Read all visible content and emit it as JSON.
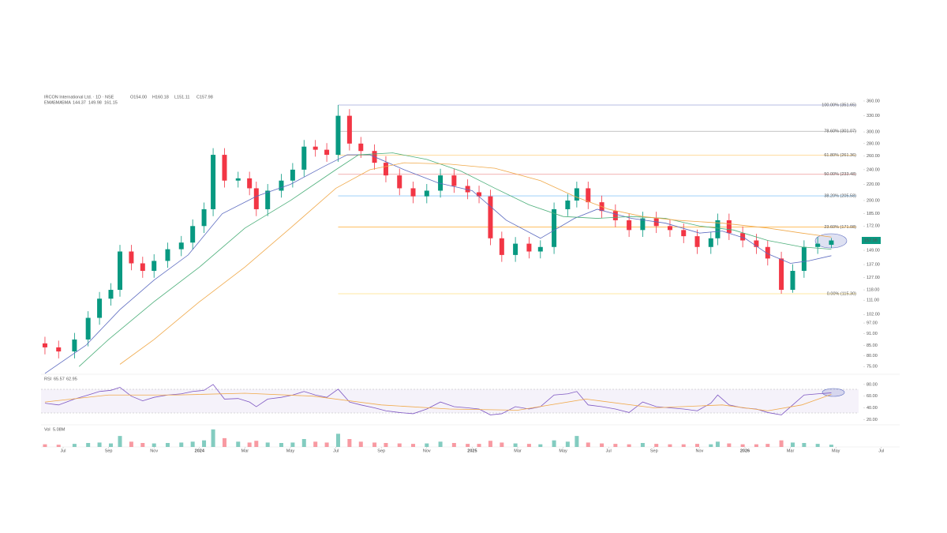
{
  "chart_data": [
    {
      "type": "candlestick",
      "title": "IRCON International Ltd. · 1D · NSE",
      "ohlc_labels": [
        "O154.00",
        "H160.18",
        "L151.11",
        "C157.98"
      ],
      "log_scale": true,
      "ylim": [
        73,
        365
      ],
      "yticks": [
        {
          "value": 360,
          "label": "360.00"
        },
        {
          "value": 330,
          "label": "330.00"
        },
        {
          "value": 300,
          "label": "300.00"
        },
        {
          "value": 280,
          "label": "280.00"
        },
        {
          "value": 260,
          "label": "260.00"
        },
        {
          "value": 240,
          "label": "240.00"
        },
        {
          "value": 220,
          "label": "220.00"
        },
        {
          "value": 200,
          "label": "200.00"
        },
        {
          "value": 185,
          "label": "185.00"
        },
        {
          "value": 172,
          "label": "172.00"
        },
        {
          "value": 149,
          "label": "149.00"
        },
        {
          "value": 137,
          "label": "137.00"
        },
        {
          "value": 127,
          "label": "127.00"
        },
        {
          "value": 118,
          "label": "118.00"
        },
        {
          "value": 111,
          "label": "111.00"
        },
        {
          "value": 102,
          "label": "102.00"
        },
        {
          "value": 97,
          "label": "97.00"
        },
        {
          "value": 91,
          "label": "91.00"
        },
        {
          "value": 85,
          "label": "85.00"
        },
        {
          "value": 80,
          "label": "80.00"
        },
        {
          "value": 75,
          "label": "75.00"
        }
      ],
      "xlim": [
        5,
        42
      ],
      "xticks": [
        {
          "value": 6,
          "label": "Jul"
        },
        {
          "value": 8,
          "label": "Sep"
        },
        {
          "value": 10,
          "label": "Nov"
        },
        {
          "value": 12,
          "label": "2024"
        },
        {
          "value": 14,
          "label": "Mar"
        },
        {
          "value": 16,
          "label": "May"
        },
        {
          "value": 18,
          "label": "Jul"
        },
        {
          "value": 20,
          "label": "Sep"
        },
        {
          "value": 22,
          "label": "Nov"
        },
        {
          "value": 24,
          "label": "2025"
        },
        {
          "value": 26,
          "label": "Mar"
        },
        {
          "value": 28,
          "label": "May"
        },
        {
          "value": 30,
          "label": "Jul"
        },
        {
          "value": 32,
          "label": "Sep"
        },
        {
          "value": 34,
          "label": "Nov"
        },
        {
          "value": 36,
          "label": "2026"
        },
        {
          "value": 38,
          "label": "Mar"
        },
        {
          "value": 40,
          "label": "May"
        },
        {
          "value": 42,
          "label": "Jul"
        }
      ],
      "up_color": "#089981",
      "down_color": "#f23645",
      "x": [
        5.2,
        5.8,
        6.5,
        7.1,
        7.6,
        8.1,
        8.5,
        9.0,
        9.5,
        10.0,
        10.6,
        11.2,
        11.7,
        12.2,
        12.6,
        13.1,
        13.7,
        14.2,
        14.5,
        15.0,
        15.6,
        16.1,
        16.6,
        17.1,
        17.6,
        18.1,
        18.6,
        19.1,
        19.7,
        20.2,
        20.8,
        21.4,
        22.0,
        22.6,
        23.2,
        23.8,
        24.3,
        24.8,
        25.3,
        25.9,
        26.5,
        27.0,
        27.6,
        28.2,
        28.6,
        29.1,
        29.7,
        30.3,
        30.9,
        31.5,
        32.1,
        32.7,
        33.3,
        33.9,
        34.5,
        34.8,
        35.3,
        35.9,
        36.5,
        37.0,
        37.6,
        38.1,
        38.6,
        39.2,
        39.8
      ],
      "open": [
        86,
        84,
        82,
        88,
        100,
        112,
        118,
        148,
        138,
        132,
        140,
        150,
        156,
        172,
        190,
        262,
        225,
        228,
        215,
        190,
        212,
        225,
        240,
        275,
        270,
        262,
        330,
        280,
        268,
        250,
        232,
        215,
        205,
        212,
        232,
        218,
        210,
        205,
        160,
        145,
        155,
        148,
        152,
        190,
        200,
        215,
        198,
        188,
        178,
        168,
        180,
        172,
        168,
        162,
        152,
        160,
        178,
        165,
        158,
        152,
        142,
        118,
        132,
        152,
        154
      ],
      "high": [
        89.4,
        87.4,
        91.5,
        104,
        116.5,
        122.7,
        153.9,
        153.9,
        143.5,
        145.6,
        156,
        162.2,
        178.9,
        197.6,
        272.5,
        272.5,
        237.1,
        237.1,
        223.6,
        220.5,
        234,
        249.6,
        286,
        286,
        280.8,
        351.65,
        343.2,
        291.2,
        278.7,
        260,
        241.3,
        223.6,
        220.5,
        241.3,
        241.3,
        226.7,
        218.4,
        213.2,
        166.4,
        161.2,
        161.2,
        158.1,
        197.6,
        208,
        223.6,
        223.6,
        205.9,
        195.5,
        185.1,
        187.2,
        187.2,
        178.9,
        174.7,
        168.5,
        166.4,
        185.1,
        185.1,
        171.6,
        164.3,
        158.1,
        147.7,
        137.3,
        158.1,
        161.2,
        160.18
      ],
      "low": [
        80.6,
        78.7,
        78.7,
        84.5,
        96,
        107.5,
        113.3,
        132.5,
        126.7,
        126.7,
        134.4,
        144,
        149.8,
        165.1,
        182.4,
        216,
        216,
        206.4,
        182.4,
        182.4,
        203.5,
        216,
        230.4,
        259.2,
        251.5,
        251.5,
        268.8,
        257.3,
        240,
        222.7,
        206.4,
        196.8,
        196.8,
        203.5,
        209.3,
        201.6,
        196.8,
        153.6,
        139.2,
        139.2,
        142.1,
        142.1,
        145.9,
        182.4,
        192,
        190.1,
        180.5,
        170.9,
        161.3,
        161.3,
        165.1,
        161.3,
        155.5,
        145.9,
        145.9,
        153.6,
        158.4,
        151.7,
        145.9,
        136.3,
        115.3,
        116,
        126.7,
        145.9,
        151.11
      ],
      "close": [
        84,
        82,
        88,
        100,
        112,
        118,
        148,
        138,
        132,
        140,
        150,
        156,
        172,
        190,
        262,
        225,
        228,
        215,
        190,
        212,
        225,
        240,
        275,
        270,
        262,
        330,
        280,
        268,
        250,
        232,
        215,
        205,
        212,
        232,
        218,
        210,
        205,
        160,
        145,
        155,
        148,
        152,
        190,
        200,
        215,
        198,
        188,
        178,
        168,
        180,
        172,
        168,
        162,
        152,
        160,
        178,
        165,
        158,
        152,
        142,
        118,
        132,
        152,
        155,
        157.98
      ],
      "overlays": [
        {
          "name": "EMA",
          "color": "#5c6bc0",
          "x": [
            5.2,
            7,
            8.5,
            10,
            11.5,
            13,
            14.5,
            16,
            17.5,
            18.5,
            19.5,
            21,
            22.5,
            24,
            25.5,
            27,
            28.5,
            29.5,
            31,
            32.5,
            34,
            35,
            36,
            37,
            38,
            38.8,
            39.8
          ],
          "values": [
            72,
            85,
            105,
            125,
            145,
            185,
            205,
            220,
            245,
            262,
            262,
            240,
            222,
            212,
            178,
            160,
            180,
            190,
            180,
            175,
            165,
            167,
            160,
            146,
            138,
            140,
            144.37
          ]
        },
        {
          "name": "SMA",
          "color": "#4caf7a",
          "x": [
            6.7,
            8,
            10,
            12,
            14,
            16,
            18,
            19,
            20.5,
            22,
            23.5,
            25,
            26.5,
            28,
            29.5,
            31,
            32.5,
            34,
            35.5,
            37,
            38.5,
            39.8
          ],
          "values": [
            75,
            88,
            110,
            135,
            170,
            200,
            240,
            262,
            265,
            255,
            238,
            215,
            195,
            182,
            180,
            182,
            180,
            172,
            168,
            158,
            152,
            149.98
          ]
        },
        {
          "name": "SMA",
          "color": "#f0a94a",
          "x": [
            8.5,
            10,
            12,
            14,
            16,
            18,
            19.5,
            21,
            23,
            25,
            27,
            28.5,
            30,
            31.5,
            33,
            35,
            37,
            38.5,
            39.8
          ],
          "values": [
            76,
            88,
            110,
            135,
            170,
            215,
            240,
            250,
            248,
            242,
            225,
            205,
            190,
            182,
            178,
            175,
            170,
            165,
            161.15
          ]
        }
      ],
      "fib_levels": [
        {
          "value": 351.65,
          "label": "100.00% (351.65)",
          "color": "#9fa8da"
        },
        {
          "value": 301.07,
          "label": "78.60% (301.07)",
          "color": "#b0b0b0"
        },
        {
          "value": 261.36,
          "label": "61.80% (261.36)",
          "color": "#ffd180"
        },
        {
          "value": 233.48,
          "label": "50.00% (233.48)",
          "color": "#ef9a9a"
        },
        {
          "value": 205.58,
          "label": "38.20% (205.58)",
          "color": "#90caf9"
        },
        {
          "value": 171.08,
          "label": "23.60% (171.08)",
          "color": "#ffb74d"
        },
        {
          "value": 115.3,
          "label": "0.00% (115.30)",
          "color": "#ffe082"
        }
      ]
    },
    {
      "type": "line",
      "title": "RSI",
      "ylim": [
        11,
        92
      ],
      "yticks": [
        {
          "value": 80,
          "label": "80.00"
        },
        {
          "value": 60,
          "label": "60.00"
        },
        {
          "value": 40,
          "label": "40.00"
        },
        {
          "value": 20,
          "label": "20.00"
        }
      ],
      "series": [
        {
          "color": "#7e57c2",
          "x": [
            5.2,
            5.8,
            6.5,
            7.1,
            7.6,
            8.1,
            8.5,
            9.0,
            9.5,
            10.0,
            10.6,
            11.2,
            11.7,
            12.2,
            12.6,
            13.1,
            13.7,
            14.2,
            14.5,
            15.0,
            15.6,
            16.1,
            16.6,
            17.1,
            17.6,
            18.1,
            18.6,
            19.1,
            19.7,
            20.2,
            20.8,
            21.4,
            22.0,
            22.6,
            23.2,
            23.8,
            24.3,
            24.8,
            25.3,
            25.9,
            26.5,
            27.0,
            27.6,
            28.2,
            28.6,
            29.1,
            29.7,
            30.3,
            30.9,
            31.5,
            32.1,
            32.7,
            33.3,
            33.9,
            34.5,
            34.8,
            35.3,
            35.9,
            36.5,
            37.0,
            37.6,
            38.1,
            38.6,
            39.2,
            39.8
          ],
          "values": [
            48,
            45,
            55,
            62,
            68,
            70,
            75,
            60,
            52,
            58,
            62,
            64,
            68,
            70,
            80,
            55,
            56,
            50,
            42,
            55,
            58,
            62,
            68,
            62,
            58,
            72,
            50,
            45,
            40,
            35,
            32,
            30,
            38,
            50,
            42,
            40,
            38,
            28,
            30,
            42,
            38,
            42,
            62,
            64,
            68,
            45,
            42,
            38,
            32,
            50,
            42,
            40,
            38,
            35,
            48,
            62,
            45,
            40,
            38,
            32,
            28,
            45,
            62,
            64,
            65.57
          ]
        },
        {
          "color": "#f0a94a",
          "x": [
            5.2,
            8,
            11,
            14,
            17,
            20,
            23,
            26,
            29,
            32,
            35,
            37,
            38.5,
            39.8
          ],
          "values": [
            50,
            62,
            62,
            65,
            60,
            45,
            38,
            36,
            55,
            40,
            45,
            35,
            45,
            62.95
          ]
        }
      ]
    },
    {
      "type": "bar",
      "title": "Vol",
      "value_label": "5.08M",
      "ylim": [
        0,
        45
      ],
      "x": [
        5.2,
        5.8,
        6.5,
        7.1,
        7.6,
        8.1,
        8.5,
        9.0,
        9.5,
        10.0,
        10.6,
        11.2,
        11.7,
        12.2,
        12.6,
        13.1,
        13.7,
        14.2,
        14.5,
        15.0,
        15.6,
        16.1,
        16.6,
        17.1,
        17.6,
        18.1,
        18.6,
        19.1,
        19.7,
        20.2,
        20.8,
        21.4,
        22.0,
        22.6,
        23.2,
        23.8,
        24.3,
        24.8,
        25.3,
        25.9,
        26.5,
        27.0,
        27.6,
        28.2,
        28.6,
        29.1,
        29.7,
        30.3,
        30.9,
        31.5,
        32.1,
        32.7,
        33.3,
        33.9,
        34.5,
        34.8,
        35.3,
        35.9,
        36.5,
        37.0,
        37.6,
        38.1,
        38.6,
        39.2,
        39.8
      ],
      "values": [
        6,
        5,
        7,
        9,
        10,
        8,
        25,
        12,
        9,
        8,
        9,
        10,
        12,
        15,
        40,
        20,
        12,
        10,
        14,
        10,
        9,
        10,
        18,
        12,
        10,
        30,
        18,
        12,
        10,
        9,
        8,
        7,
        8,
        12,
        9,
        7,
        7,
        14,
        10,
        8,
        7,
        6,
        15,
        12,
        25,
        10,
        8,
        7,
        6,
        9,
        7,
        6,
        6,
        7,
        6,
        12,
        8,
        6,
        6,
        7,
        15,
        10,
        9,
        7,
        5.08
      ]
    }
  ]
}
